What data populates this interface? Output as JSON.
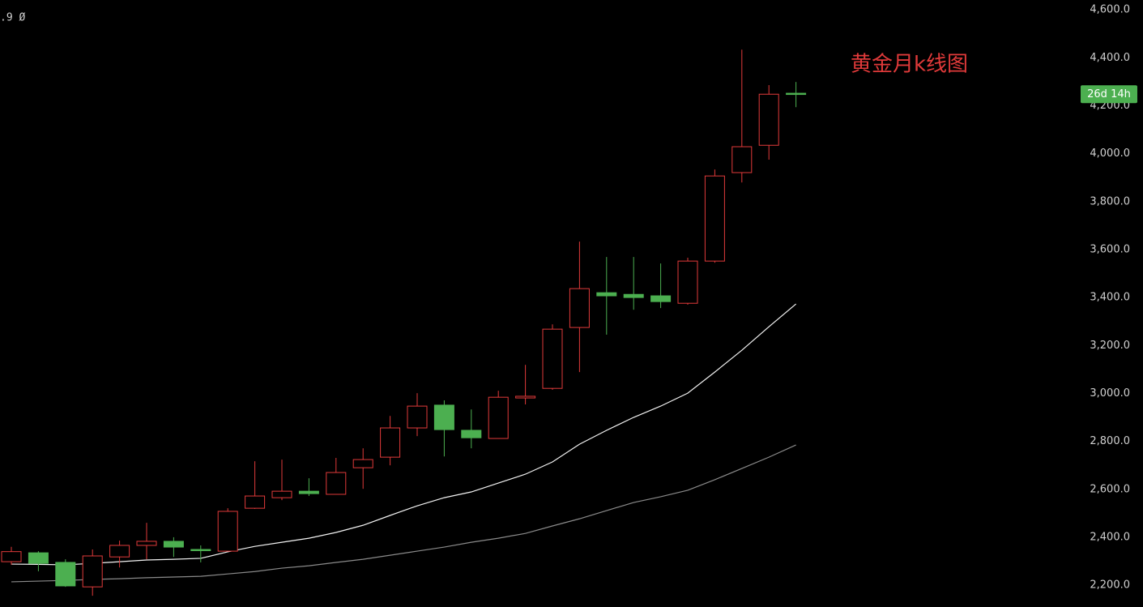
{
  "chart_data": {
    "type": "candlestick",
    "title": "黄金月k线图",
    "info_text": ".9 Ø",
    "countdown_label": "26d 14h",
    "up_color": "#e03a3a",
    "down_color": "#4caf50",
    "categories": [
      null,
      null,
      null,
      null,
      null,
      null,
      null,
      null,
      null,
      null,
      null,
      null,
      null,
      null,
      null,
      null,
      null,
      null,
      null,
      null,
      null,
      null,
      null,
      null,
      null,
      null,
      null,
      null,
      null,
      null
    ],
    "open": [
      2298,
      2335,
      2295,
      2193,
      2318,
      2366,
      2383,
      2349,
      2342,
      2521,
      2565,
      2592,
      2579,
      2690,
      2734,
      2856,
      2951,
      2846,
      2812,
      2981,
      3021,
      3275,
      3420,
      3413,
      3407,
      3376,
      3552,
      3921,
      4035,
      4252
    ],
    "high": [
      2360,
      2342,
      2308,
      2349,
      2386,
      2460,
      2400,
      2366,
      2521,
      2717,
      2724,
      2646,
      2731,
      2771,
      2906,
      3001,
      2971,
      2933,
      3011,
      3119,
      3288,
      3633,
      3569,
      3569,
      3542,
      3566,
      3934,
      4434,
      4286,
      4299
    ],
    "low": [
      2285,
      2258,
      2193,
      2156,
      2274,
      2308,
      2318,
      2295,
      2342,
      2518,
      2555,
      2572,
      2579,
      2602,
      2700,
      2822,
      2737,
      2771,
      2812,
      2954,
      3015,
      3089,
      3245,
      3349,
      3356,
      3370,
      3545,
      3880,
      3975,
      4194
    ],
    "close": [
      2340,
      2291,
      2197,
      2322,
      2366,
      2383,
      2359,
      2346,
      2508,
      2572,
      2592,
      2582,
      2670,
      2724,
      2856,
      2947,
      2849,
      2815,
      2984,
      2988,
      3268,
      3437,
      3407,
      3400,
      3383,
      3552,
      3907,
      4029,
      4248,
      4248
    ],
    "lines": [
      {
        "color": "#f2f2f2",
        "values": [
          2288,
          2287,
          2285,
          2291,
          2298,
          2305,
          2308,
          2312,
          2339,
          2362,
          2379,
          2396,
          2420,
          2450,
          2491,
          2531,
          2565,
          2589,
          2626,
          2663,
          2714,
          2788,
          2846,
          2900,
          2947,
          3001,
          3089,
          3180,
          3278,
          3373
        ]
      },
      {
        "color": "#8a8a8a",
        "values": [
          2214,
          2217,
          2220,
          2224,
          2227,
          2231,
          2234,
          2237,
          2247,
          2257,
          2271,
          2281,
          2295,
          2308,
          2325,
          2342,
          2359,
          2379,
          2396,
          2416,
          2447,
          2477,
          2511,
          2545,
          2569,
          2596,
          2640,
          2687,
          2734,
          2785
        ]
      }
    ],
    "ylim": [
      2109,
      4641
    ],
    "yticks": [
      {
        "value": 2200,
        "label": "2,200.0"
      },
      {
        "value": 2400,
        "label": "2,400.0"
      },
      {
        "value": 2600,
        "label": "2,600.0"
      },
      {
        "value": 2800,
        "label": "2,800.0"
      },
      {
        "value": 3000,
        "label": "3,000.0"
      },
      {
        "value": 3200,
        "label": "3,200.0"
      },
      {
        "value": 3400,
        "label": "3,400.0"
      },
      {
        "value": 3600,
        "label": "3,600.0"
      },
      {
        "value": 3800,
        "label": "3,800.0"
      },
      {
        "value": 4000,
        "label": "4,000.0"
      },
      {
        "value": 4200,
        "label": "4,200.0"
      },
      {
        "value": 4400,
        "label": "4,400.0"
      },
      {
        "value": 4600,
        "label": "4,600.0"
      }
    ]
  }
}
